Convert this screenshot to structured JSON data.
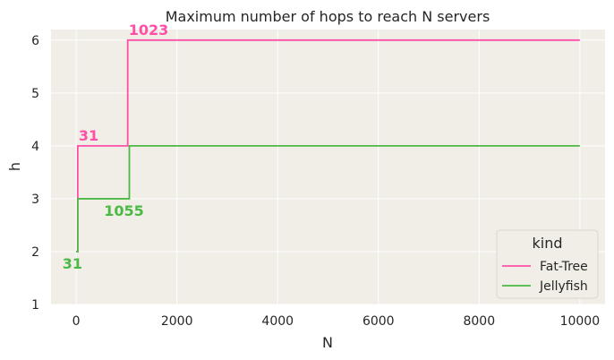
{
  "chart_data": {
    "type": "line",
    "step": true,
    "title": "Maximum number of hops to reach N servers",
    "xlabel": "N",
    "ylabel": "h",
    "xlim": [
      -500,
      10500
    ],
    "ylim": [
      1,
      6.2
    ],
    "xticks": [
      0,
      2000,
      4000,
      6000,
      8000,
      10000
    ],
    "yticks": [
      1,
      2,
      3,
      4,
      5,
      6
    ],
    "grid": true,
    "background": "#f0eee6",
    "legend": {
      "title": "kind",
      "position": "lower-right",
      "entries": [
        "Fat-Tree",
        "Jellyfish"
      ]
    },
    "series": [
      {
        "name": "Fat-Tree",
        "color": "#ff4fa7",
        "points": [
          [
            0,
            2
          ],
          [
            31,
            2
          ],
          [
            31,
            4
          ],
          [
            1023,
            4
          ],
          [
            1023,
            6
          ],
          [
            10000,
            6
          ]
        ]
      },
      {
        "name": "Jellyfish",
        "color": "#4cb944",
        "points": [
          [
            0,
            2
          ],
          [
            31,
            2
          ],
          [
            31,
            3
          ],
          [
            1055,
            3
          ],
          [
            1055,
            4
          ],
          [
            10000,
            4
          ]
        ]
      }
    ],
    "annotations": [
      {
        "text": "31",
        "x": 31,
        "y": 4,
        "series": "Fat-Tree",
        "placement": "above"
      },
      {
        "text": "1023",
        "x": 1023,
        "y": 6,
        "series": "Fat-Tree",
        "placement": "above"
      },
      {
        "text": "31",
        "x": 31,
        "y": 2,
        "series": "Jellyfish",
        "placement": "below"
      },
      {
        "text": "1055",
        "x": 1055,
        "y": 3,
        "series": "Jellyfish",
        "placement": "below"
      }
    ]
  }
}
